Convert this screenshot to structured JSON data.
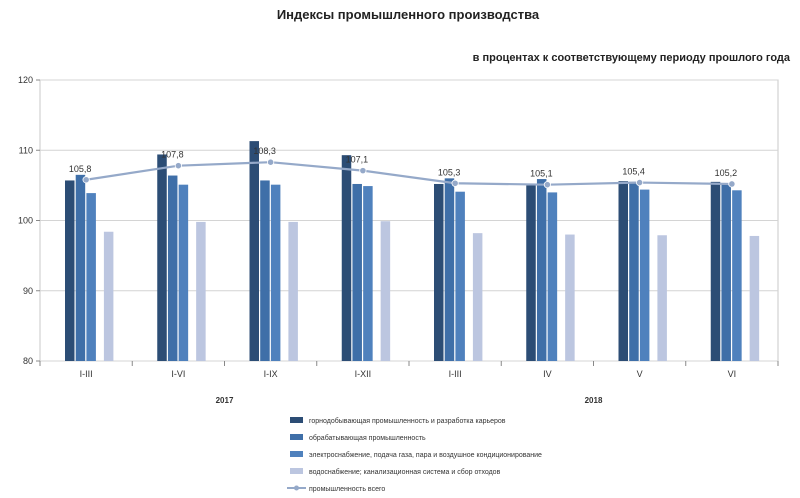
{
  "chart_data": {
    "type": "bar",
    "title": "Индексы промышленного  производства",
    "subtitle": "в процентах к соответствующему периоду прошлого года",
    "categories": [
      "I-III",
      "I-VI",
      "I-IX",
      "I-XII",
      "I-III",
      "IV",
      "V",
      "VI"
    ],
    "years": [
      {
        "label": "2017",
        "from": 0,
        "to": 3
      },
      {
        "label": "2018",
        "from": 4,
        "to": 7
      }
    ],
    "ylim": [
      80,
      120
    ],
    "yticks": [
      80,
      90,
      100,
      110,
      120
    ],
    "grid": true,
    "legend_position": "bottom",
    "series": [
      {
        "name": "горнодобывающая промышленность  и разработка  карьеров",
        "kind": "bar",
        "color": "#2c4d75",
        "values": [
          105.7,
          109.4,
          111.3,
          109.3,
          105.2,
          105.0,
          105.6,
          105.5
        ]
      },
      {
        "name": "обрабатывающая промышленность",
        "kind": "bar",
        "color": "#3f6fa8",
        "values": [
          106.5,
          106.4,
          105.7,
          105.2,
          106.0,
          105.9,
          105.5,
          105.3
        ]
      },
      {
        "name": "электроснабжение,  подача газа,  пара и воздушное кондиционирование",
        "kind": "bar",
        "color": "#4f81bd",
        "values": [
          103.9,
          105.1,
          105.1,
          104.9,
          104.1,
          104.0,
          104.4,
          104.3
        ]
      },
      {
        "name": "водоснабжение;  канализационная  система и сбор  отходов",
        "kind": "bar",
        "color": "#bcc6e0",
        "values": [
          98.4,
          99.8,
          99.8,
          99.9,
          98.2,
          98.0,
          97.9,
          97.8
        ]
      },
      {
        "name": "промышленность всего",
        "kind": "line",
        "color": "#95a9c9",
        "values": [
          105.8,
          107.8,
          108.3,
          107.1,
          105.3,
          105.1,
          105.4,
          105.2
        ],
        "labels": [
          "105,8",
          "107,8",
          "108,3",
          "107,1",
          "105,3",
          "105,1",
          "105,4",
          "105,2"
        ]
      }
    ]
  }
}
